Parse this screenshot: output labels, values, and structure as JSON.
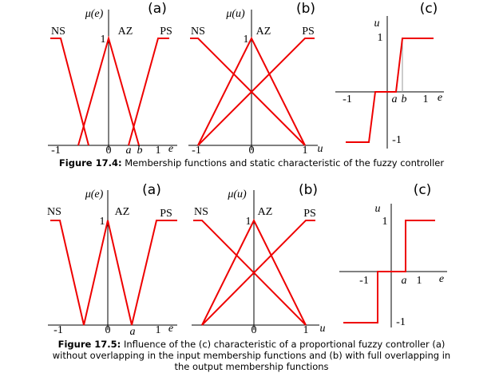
{
  "figures": [
    {
      "panels": [
        {
          "label": "(a)",
          "y_label": "μ(e)",
          "sets": [
            "NS",
            "AZ",
            "PS"
          ],
          "one": "1",
          "ticks": [
            "-1",
            "0",
            "a",
            "b",
            "1",
            "e"
          ]
        },
        {
          "label": "(b)",
          "y_label": "μ(u)",
          "sets": [
            "NS",
            "AZ",
            "PS"
          ],
          "one": "1",
          "ticks": [
            "-1",
            "0",
            "1",
            "u"
          ]
        },
        {
          "label": "(c)",
          "y_label": "u",
          "ticks": [
            "1",
            "-1",
            "-1",
            "a",
            "b",
            "1",
            "e"
          ]
        }
      ],
      "caption": {
        "label": "Figure 17.4:",
        "text": "Membership functions and static characteristic of the fuzzy controller"
      }
    },
    {
      "panels": [
        {
          "label": "(a)",
          "y_label": "μ(e)",
          "sets": [
            "NS",
            "AZ",
            "PS"
          ],
          "one": "1",
          "ticks": [
            "-1",
            "0",
            "a",
            "1",
            "e"
          ]
        },
        {
          "label": "(b)",
          "y_label": "μ(u)",
          "sets": [
            "NS",
            "AZ",
            "PS"
          ],
          "one": "1",
          "ticks": [
            "0",
            "1",
            "u"
          ]
        },
        {
          "label": "(c)",
          "y_label": "u",
          "ticks": [
            "1",
            "-1",
            "-1",
            "a",
            "1",
            "e"
          ]
        }
      ],
      "caption": {
        "label": "Figure 17.5:",
        "text": "Influence of the (c) characteristic of a proportional fuzzy controller (a) without overlapping in the input membership functions and (b) with full overlapping in the output membership functions"
      }
    }
  ]
}
